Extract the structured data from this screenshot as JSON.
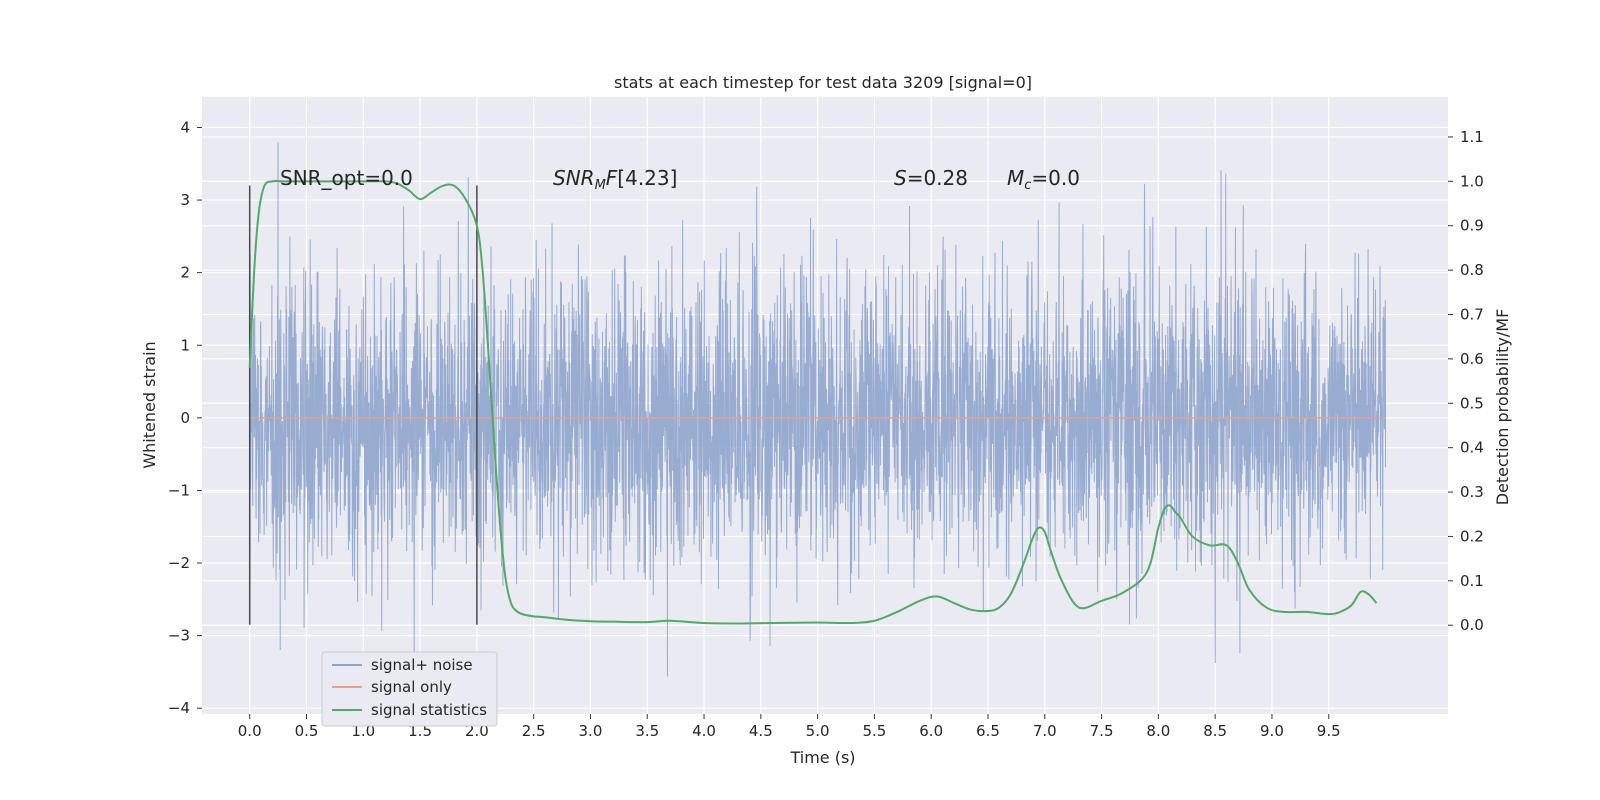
{
  "chart_data": {
    "type": "line",
    "title": "stats at each timestep for test data 3209 [signal=0]",
    "xlabel": "Time (s)",
    "ylabel_left": "Whitened strain",
    "ylabel_right": "Detection probability/MF",
    "xlim": [
      -0.42,
      10.55
    ],
    "ylim_left": [
      -4.08,
      4.42
    ],
    "ylim_right": [
      -0.2,
      1.19
    ],
    "x_ticks": [
      "0.0",
      "0.5",
      "1.0",
      "1.5",
      "2.0",
      "2.5",
      "3.0",
      "3.5",
      "4.0",
      "4.5",
      "5.0",
      "5.5",
      "6.0",
      "6.5",
      "7.0",
      "7.5",
      "8.0",
      "8.5",
      "9.0",
      "9.5"
    ],
    "y_ticks_left": [
      "4",
      "3",
      "2",
      "1",
      "0",
      "−1",
      "−2",
      "−3",
      "−4"
    ],
    "y_ticks_right": [
      "1.1",
      "1.0",
      "0.9",
      "0.8",
      "0.7",
      "0.6",
      "0.5",
      "0.4",
      "0.3",
      "0.2",
      "0.1",
      "0.0"
    ],
    "grid": true,
    "legend_position": "lower-left",
    "annotations": {
      "snr_opt": "SNR_opt=0.0",
      "snr_mf": "[4.23]",
      "s_value": "=0.28",
      "mc_value": "=0.0"
    },
    "vertical_markers": [
      0.0,
      2.0
    ],
    "marker_range": [
      -2.85,
      3.2
    ],
    "series": [
      {
        "name": "signal+ noise",
        "color": "#8fa4cc",
        "axis": "left",
        "description_values": {
          "t_range": [
            0.0,
            10.0
          ],
          "approx_std": 1.0,
          "approx_range": [
            -3.6,
            4.05
          ]
        }
      },
      {
        "name": "signal only",
        "color": "#e8a18a",
        "axis": "left",
        "x": [
          0.0,
          10.0
        ],
        "y": [
          0.0,
          0.0
        ]
      },
      {
        "name": "signal statistics",
        "color": "#55a868",
        "axis": "right",
        "x": [
          0.0,
          0.04,
          0.08,
          0.13,
          0.2,
          0.3,
          0.5,
          0.8,
          1.0,
          1.2,
          1.3,
          1.4,
          1.5,
          1.6,
          1.7,
          1.8,
          1.9,
          2.0,
          2.05,
          2.1,
          2.15,
          2.2,
          2.25,
          2.3,
          2.35,
          2.4,
          2.5,
          2.6,
          2.8,
          3.0,
          3.2,
          3.5,
          3.7,
          4.0,
          4.3,
          4.6,
          5.0,
          5.3,
          5.5,
          5.7,
          5.9,
          6.05,
          6.2,
          6.35,
          6.5,
          6.6,
          6.7,
          6.8,
          6.9,
          6.95,
          7.0,
          7.05,
          7.15,
          7.3,
          7.5,
          7.7,
          7.9,
          8.0,
          8.05,
          8.1,
          8.15,
          8.2,
          8.3,
          8.45,
          8.6,
          8.7,
          8.8,
          8.95,
          9.1,
          9.3,
          9.5,
          9.6,
          9.7,
          9.78,
          9.85,
          9.92
        ],
        "y": [
          0.58,
          0.8,
          0.93,
          0.99,
          1.0,
          1.0,
          1.0,
          1.0,
          1.0,
          1.0,
          0.995,
          0.98,
          0.96,
          0.975,
          0.99,
          0.99,
          0.96,
          0.9,
          0.8,
          0.62,
          0.42,
          0.24,
          0.11,
          0.05,
          0.032,
          0.025,
          0.02,
          0.018,
          0.012,
          0.009,
          0.008,
          0.007,
          0.01,
          0.005,
          0.004,
          0.005,
          0.006,
          0.005,
          0.01,
          0.03,
          0.055,
          0.065,
          0.05,
          0.035,
          0.032,
          0.04,
          0.07,
          0.13,
          0.2,
          0.22,
          0.21,
          0.17,
          0.1,
          0.04,
          0.055,
          0.075,
          0.12,
          0.22,
          0.26,
          0.27,
          0.255,
          0.24,
          0.2,
          0.18,
          0.18,
          0.14,
          0.08,
          0.04,
          0.03,
          0.03,
          0.025,
          0.03,
          0.045,
          0.075,
          0.07,
          0.05
        ]
      }
    ]
  }
}
